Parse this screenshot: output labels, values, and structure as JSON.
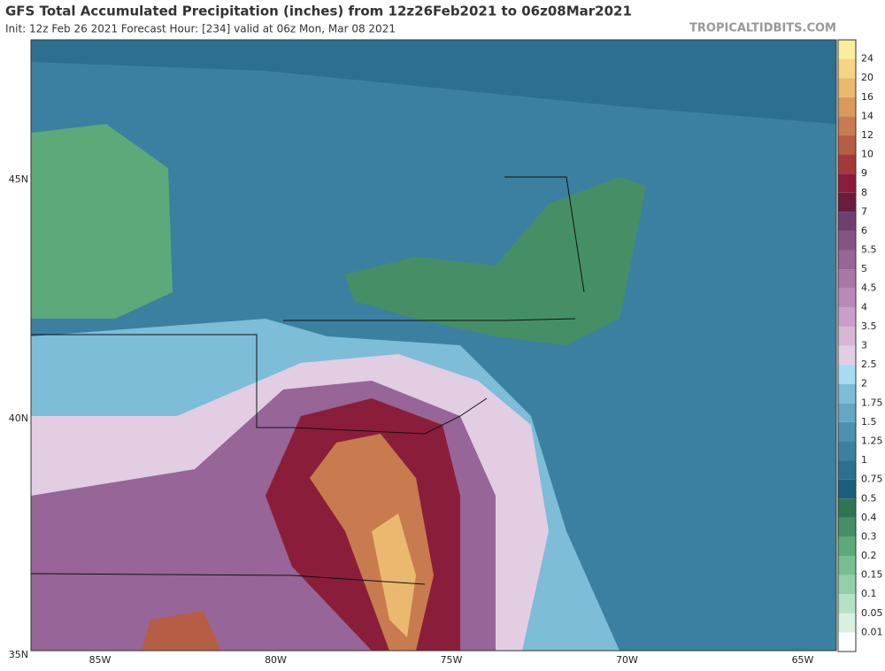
{
  "header": {
    "title": "GFS Total Accumulated Precipitation (inches) from 12z26Feb2021 to 06z08Mar2021",
    "subtitle": "Init: 12z Feb 26 2021   Forecast Hour: [234]   valid at 06z Mon, Mar 08 2021",
    "site": "TROPICALTIDBITS.COM"
  },
  "map": {
    "lat_labels": [
      "45N",
      "40N",
      "35N"
    ],
    "lon_labels": [
      "85W",
      "80W",
      "75W",
      "70W",
      "65W"
    ]
  },
  "colorbar": {
    "labels": [
      0.01,
      0.05,
      0.1,
      0.15,
      0.2,
      0.3,
      0.4,
      0.5,
      0.75,
      1,
      1.25,
      1.5,
      1.75,
      2,
      2.5,
      3,
      3.5,
      4,
      4.5,
      5,
      5.5,
      6,
      7,
      8,
      9,
      10,
      12,
      14,
      16,
      20,
      24
    ],
    "colors": [
      "#ffffff",
      "#d7f0e0",
      "#b5e2c5",
      "#93d0a9",
      "#77bf92",
      "#5ca97a",
      "#468f66",
      "#2f7554",
      "#1b5f7d",
      "#2c6f91",
      "#3b80a0",
      "#4c91b0",
      "#64a6c4",
      "#7dbdd8",
      "#a5dcef",
      "#e2cde3",
      "#d7b6d6",
      "#c99fc9",
      "#b98ab9",
      "#a877a8",
      "#976597",
      "#855485",
      "#6f3f71",
      "#6a1c3f",
      "#8a1e3a",
      "#a23a3b",
      "#b65d46",
      "#c97b50",
      "#db9a5d",
      "#eab86f",
      "#f4d485",
      "#fbeda0"
    ]
  }
}
